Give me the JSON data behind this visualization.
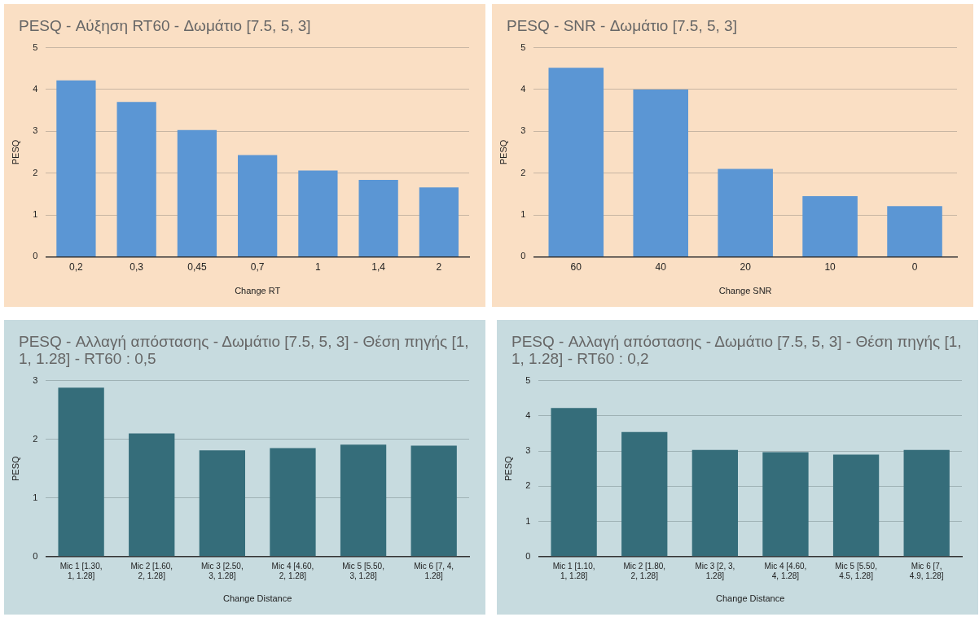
{
  "chart_data": [
    {
      "type": "bar",
      "title": "PESQ - Αύξηση RT60 - Δωμάτιο [7.5, 5, 3]",
      "xlabel": "Change RT",
      "ylabel": "PESQ",
      "categories": [
        "0,2",
        "0,3",
        "0,45",
        "0,7",
        "1",
        "1,4",
        "2"
      ],
      "values": [
        4.22,
        3.7,
        3.03,
        2.43,
        2.06,
        1.84,
        1.66
      ],
      "color": "#5b96d4",
      "ylim": [
        0,
        5
      ],
      "yticks": [
        0,
        1,
        2,
        3,
        4,
        5
      ],
      "grid": "y"
    },
    {
      "type": "bar",
      "title": "PESQ - SNR - Δωμάτιο [7.5, 5, 3]",
      "xlabel": "Change SNR",
      "ylabel": "PESQ",
      "categories": [
        "60",
        "40",
        "20",
        "10",
        "0"
      ],
      "values": [
        4.52,
        4.0,
        2.1,
        1.45,
        1.21
      ],
      "color": "#5b96d4",
      "ylim": [
        0,
        5
      ],
      "yticks": [
        0,
        1,
        2,
        3,
        4,
        5
      ],
      "grid": "y"
    },
    {
      "type": "bar",
      "title": "PESQ -  Αλλαγή απόστασης - Δωμάτιο [7.5, 5, 3] - Θέση πηγής [1, 1, 1.28] - RT60 : 0,5",
      "xlabel": "Change Distance",
      "ylabel": "PESQ",
      "categories": [
        "Mic 1 [1.30, 1, 1.28]",
        "Mic 2 [1.60, 2, 1.28]",
        "Mic 3 [2.50, 3, 1.28]",
        "Mic 4 [4.60, 2, 1.28]",
        "Mic 5 [5.50, 3, 1.28]",
        "Mic 6 [7, 4, 1.28]"
      ],
      "values": [
        2.88,
        2.1,
        1.81,
        1.85,
        1.91,
        1.89
      ],
      "color": "#356d7a",
      "ylim": [
        0,
        3
      ],
      "yticks": [
        0,
        1,
        2,
        3
      ],
      "grid": "y"
    },
    {
      "type": "bar",
      "title": "PESQ -  Αλλαγή απόστασης - Δωμάτιο [7.5, 5, 3] - Θέση πηγής [1, 1, 1.28] - RT60 : 0,2",
      "xlabel": "Change Distance",
      "ylabel": "PESQ",
      "categories": [
        "Mic 1 [1.10, 1, 1.28]",
        "Mic 2 [1.80, 2, 1.28]",
        "Mic 3 [2, 3, 1.28]",
        "Mic 4 [4.60, 4, 1.28]",
        "Mic 5 [5.50, 4.5, 1.28]",
        "Mic 6 [7, 4.9, 1.28]"
      ],
      "values": [
        4.22,
        3.54,
        3.03,
        2.97,
        2.9,
        3.03
      ],
      "color": "#356d7a",
      "ylim": [
        0,
        5
      ],
      "yticks": [
        0,
        1,
        2,
        3,
        4,
        5
      ],
      "grid": "y"
    }
  ]
}
